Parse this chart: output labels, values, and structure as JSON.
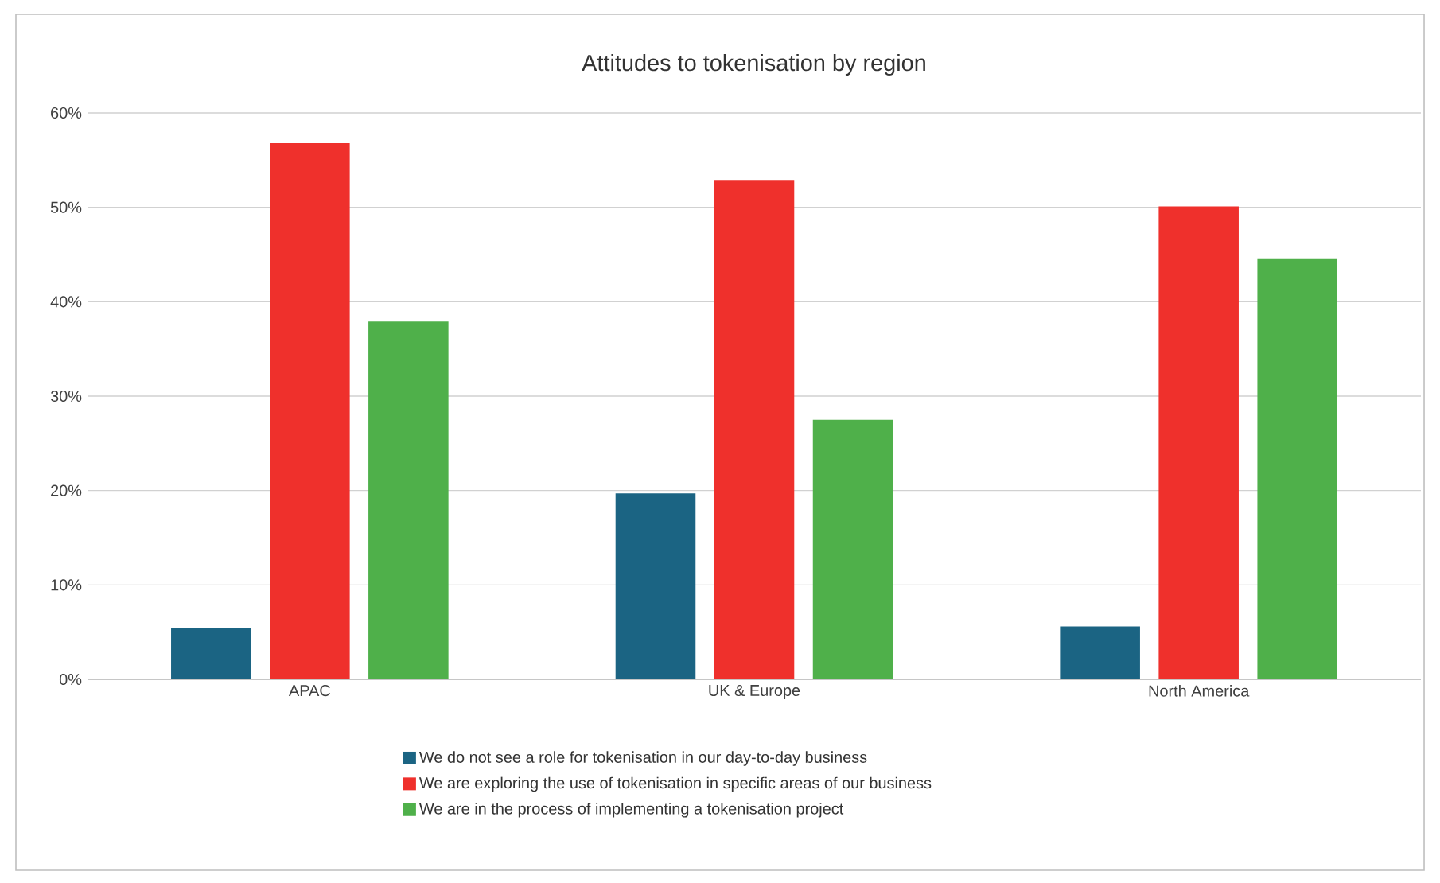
{
  "chart_data": {
    "type": "bar",
    "title": "Attitudes to tokenisation by region",
    "categories": [
      "APAC",
      "UK & Europe",
      "North America"
    ],
    "series": [
      {
        "name": "We do not see a role for tokenisation in our day-to-day business",
        "color": "#1b6483",
        "values": [
          5.4,
          19.7,
          5.6
        ]
      },
      {
        "name": "We are exploring the use of tokenisation in specific areas of our business",
        "color": "#ef302c",
        "values": [
          56.8,
          52.9,
          50.1
        ]
      },
      {
        "name": "We are in the process of implementing a tokenisation project",
        "color": "#4fb04a",
        "values": [
          37.9,
          27.5,
          44.6
        ]
      }
    ],
    "ylim": [
      0,
      60
    ],
    "yticks": [
      {
        "value": 0,
        "label": "0%"
      },
      {
        "value": 10,
        "label": "10%"
      },
      {
        "value": 20,
        "label": "20%"
      },
      {
        "value": 30,
        "label": "30%"
      },
      {
        "value": 40,
        "label": "40%"
      },
      {
        "value": 50,
        "label": "50%"
      },
      {
        "value": 60,
        "label": "60%"
      }
    ],
    "grid": "y",
    "legend": "bottom"
  }
}
